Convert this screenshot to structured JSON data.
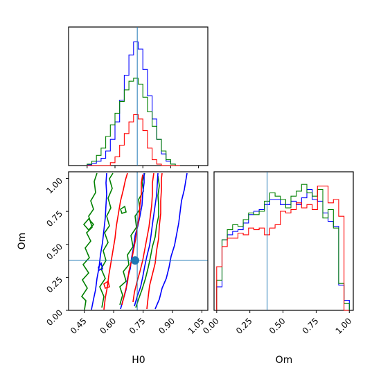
{
  "chart_data": {
    "type": "corner",
    "parameters": [
      "H0",
      "Om"
    ],
    "truth": {
      "H0": 0.72,
      "Om": 0.38
    },
    "truth_color": "#1f77b4",
    "series_colors": [
      "#0000ff",
      "#008000",
      "#ff0000"
    ],
    "grid": false,
    "panels": {
      "h0_marginal": {
        "type": "histogram",
        "xlim": [
          0.35,
          1.1
        ],
        "bin_edges": [
          0.45,
          0.475,
          0.5,
          0.525,
          0.55,
          0.575,
          0.6,
          0.625,
          0.65,
          0.675,
          0.7,
          0.725,
          0.75,
          0.775,
          0.8,
          0.825,
          0.85,
          0.875,
          0.9,
          0.925,
          0.95
        ],
        "series": [
          {
            "color": "#0000ff",
            "values": [
              0.5,
              1.5,
              3,
              5,
              10,
              18,
              30,
              45,
              62,
              76,
              85,
              80,
              66,
              48,
              32,
              18,
              8,
              3,
              1,
              0
            ]
          },
          {
            "color": "#008000",
            "values": [
              1,
              3,
              7,
              12,
              20,
              28,
              36,
              44,
              52,
              58,
              60,
              56,
              47,
              37,
              27,
              18,
              10,
              4,
              1,
              0
            ]
          },
          {
            "color": "#ff0000",
            "values": [
              0,
              0,
              0,
              0,
              0,
              2,
              6,
              14,
              22,
              30,
              35,
              32,
              24,
              12,
              4,
              1,
              0,
              0,
              0,
              0
            ]
          }
        ]
      },
      "h0_om_joint": {
        "type": "contour",
        "xlim": [
          0.37,
          1.08
        ],
        "ylim": [
          0.0,
          1.05
        ],
        "xticks": [
          "0.45",
          "0.60",
          "0.75",
          "0.90",
          "1.05"
        ],
        "yticks": [
          "0.00",
          "0.25",
          "0.50",
          "0.75",
          "1.00"
        ],
        "xlabel": "H0",
        "ylabel": "Om"
      },
      "om_marginal": {
        "type": "histogram",
        "xlim": [
          -0.02,
          1.03
        ],
        "xticks": [
          "0.00",
          "0.25",
          "0.50",
          "0.75",
          "1.00"
        ],
        "xlabel": "Om",
        "bin_edges": [
          0.0,
          0.04,
          0.08,
          0.12,
          0.16,
          0.2,
          0.24,
          0.28,
          0.32,
          0.36,
          0.4,
          0.44,
          0.48,
          0.52,
          0.56,
          0.6,
          0.64,
          0.68,
          0.72,
          0.76,
          0.8,
          0.84,
          0.88,
          0.92,
          0.96,
          1.0
        ],
        "series": [
          {
            "color": "#0000ff",
            "values": [
              14,
              42,
              45,
              47,
              48,
              52,
              57,
              59,
              60,
              63,
              66,
              66,
              63,
              63,
              65,
              63,
              67,
              72,
              66,
              65,
              58,
              53,
              50,
              15,
              6
            ]
          },
          {
            "color": "#008000",
            "values": [
              18,
              42,
              48,
              51,
              50,
              54,
              58,
              57,
              59,
              65,
              70,
              68,
              66,
              61,
              68,
              71,
              75,
              70,
              68,
              72,
              55,
              60,
              49,
              16,
              4
            ]
          },
          {
            "color": "#ff0000",
            "values": [
              26,
              38,
              43,
              43,
              46,
              45,
              49,
              48,
              49,
              45,
              49,
              51,
              59,
              58,
              60,
              64,
              61,
              63,
              60,
              74,
              74,
              64,
              66,
              56,
              0
            ]
          }
        ]
      }
    }
  }
}
